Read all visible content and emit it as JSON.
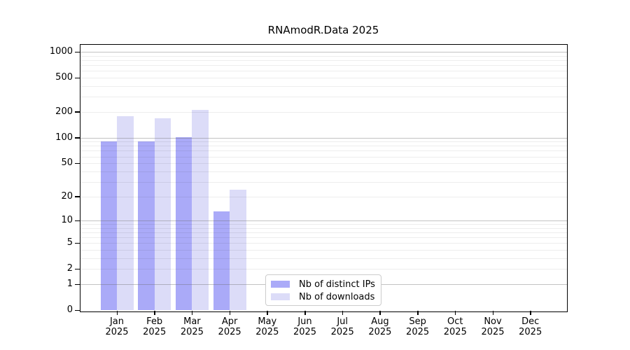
{
  "chart_data": {
    "type": "bar",
    "title": "RNAmodR.Data 2025",
    "scale": "log10(x+1)",
    "year": "2025",
    "categories": [
      "Jan",
      "Feb",
      "Mar",
      "Apr",
      "May",
      "Jun",
      "Jul",
      "Aug",
      "Sep",
      "Oct",
      "Nov",
      "Dec"
    ],
    "series": [
      {
        "name": "Nb of distinct IPs",
        "color": "#aaaaf8",
        "values": [
          91,
          90,
          102,
          13,
          null,
          null,
          null,
          null,
          null,
          null,
          null,
          null
        ]
      },
      {
        "name": "Nb of downloads",
        "color": "#dcdcf8",
        "values": [
          180,
          168,
          210,
          24,
          null,
          null,
          null,
          null,
          null,
          null,
          null,
          null
        ]
      }
    ],
    "y_ticks": [
      0,
      1,
      2,
      5,
      10,
      20,
      50,
      100,
      200,
      500,
      1000
    ],
    "ylim": [
      0,
      1212
    ],
    "xlabel": "",
    "ylabel": "",
    "grid": true,
    "legend_position": "lower center",
    "colors": {
      "axis": "#000000",
      "grid_minor": "#ececec",
      "grid_major": "#c2c2c2",
      "background": "#ffffff"
    }
  }
}
